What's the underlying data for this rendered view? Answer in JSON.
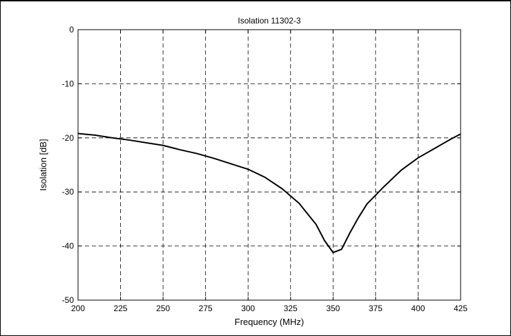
{
  "chart_data": {
    "type": "line",
    "title": "Isolation 11302-3",
    "xlabel": "Frequency (MHz)",
    "ylabel": "Isolation [dB]",
    "xlim": [
      200,
      425
    ],
    "ylim": [
      -50,
      0
    ],
    "xticks": [
      200,
      225,
      250,
      275,
      300,
      325,
      350,
      375,
      400,
      425
    ],
    "yticks": [
      0,
      -10,
      -20,
      -30,
      -40,
      -50
    ],
    "grid": true,
    "series": [
      {
        "color": "#000000",
        "x": [
          200,
          210,
          220,
          230,
          240,
          250,
          260,
          270,
          280,
          290,
          300,
          310,
          320,
          330,
          340,
          345,
          350,
          355,
          360,
          365,
          370,
          375,
          380,
          390,
          400,
          410,
          420,
          425
        ],
        "y": [
          -19.2,
          -19.5,
          -20.0,
          -20.4,
          -20.9,
          -21.4,
          -22.2,
          -22.9,
          -23.8,
          -24.8,
          -25.8,
          -27.3,
          -29.4,
          -32.1,
          -36.0,
          -39.0,
          -41.2,
          -40.6,
          -37.5,
          -34.7,
          -32.2,
          -30.6,
          -29.0,
          -26.0,
          -23.7,
          -21.9,
          -20.1,
          -19.3
        ]
      }
    ]
  }
}
